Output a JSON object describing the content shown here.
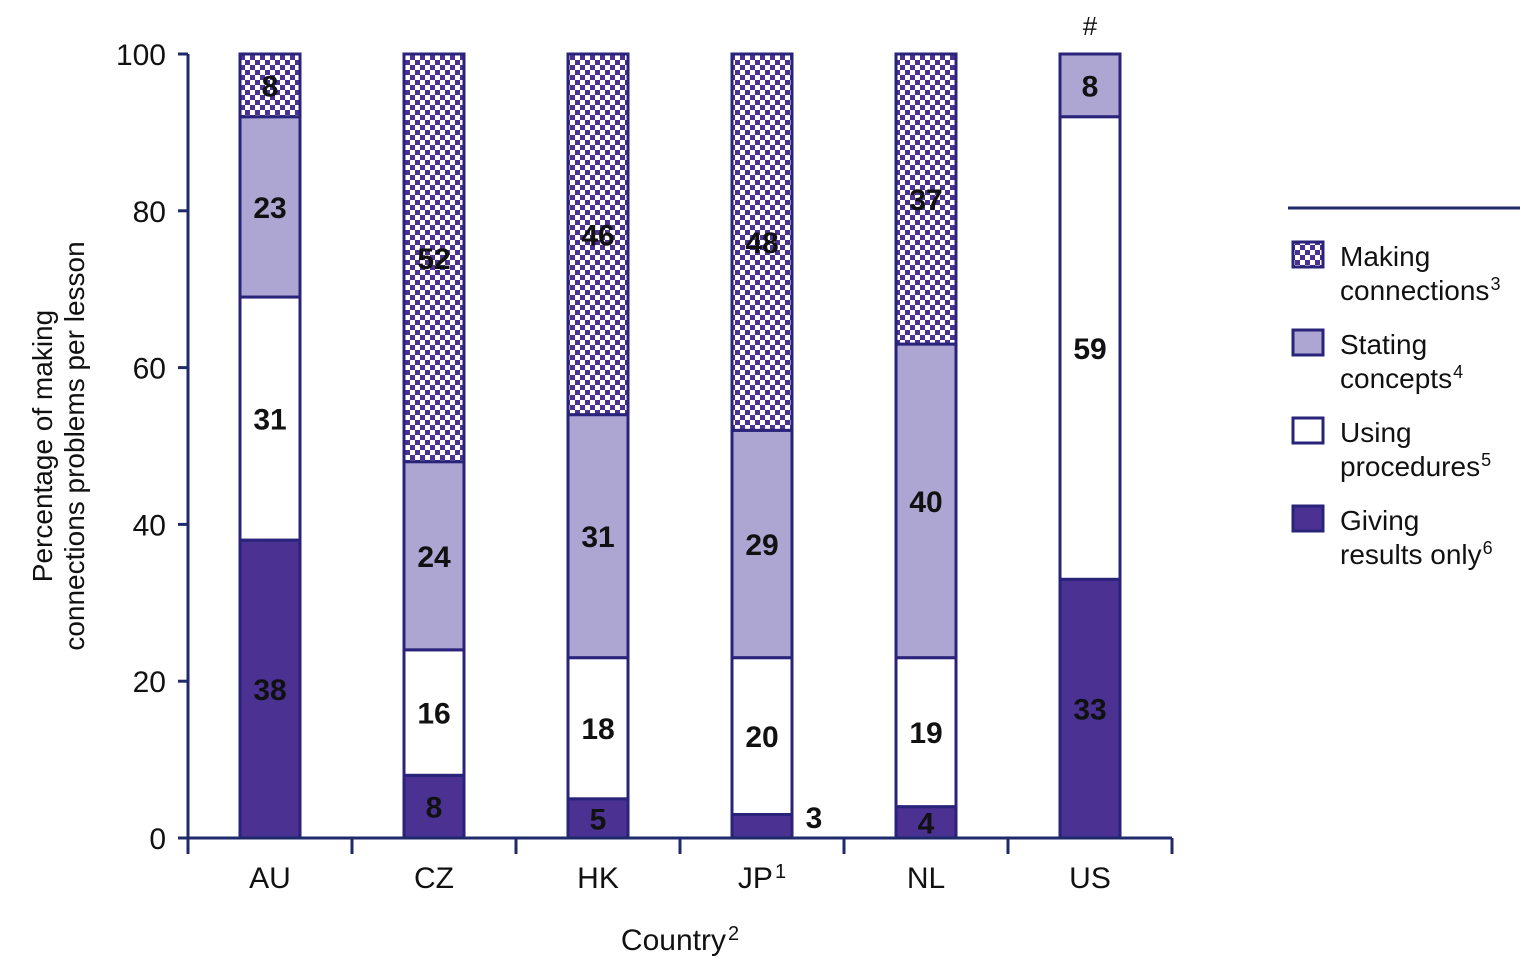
{
  "chart_data": {
    "type": "bar",
    "stacked": true,
    "percent_stacked": true,
    "xlabel": "Country",
    "xlabel_superscript": "2",
    "ylabel_lines": [
      "Percentage of making",
      "connections problems per lesson"
    ],
    "ylim": [
      0,
      100
    ],
    "yticks": [
      0,
      20,
      40,
      60,
      80,
      100
    ],
    "categories": [
      "AU",
      "CZ",
      "HK",
      "JP",
      "NL",
      "US"
    ],
    "category_superscripts": [
      "",
      "",
      "",
      "1",
      "",
      ""
    ],
    "top_notes": [
      "",
      "",
      "",
      "",
      "",
      "#"
    ],
    "series": [
      {
        "name": "Giving results only",
        "name_lines": [
          "Giving",
          "results only"
        ],
        "superscript": "6",
        "values": [
          38,
          8,
          5,
          3,
          4,
          33
        ],
        "labels": [
          "38",
          "8",
          "5",
          "3",
          "4",
          "33"
        ],
        "fill": "#4a3192",
        "pattern": "solid"
      },
      {
        "name": "Using procedures",
        "name_lines": [
          "Using",
          "procedures"
        ],
        "superscript": "5",
        "values": [
          31,
          16,
          18,
          20,
          19,
          59
        ],
        "labels": [
          "31",
          "16",
          "18",
          "20",
          "19",
          "59"
        ],
        "fill": "#ffffff",
        "pattern": "solid"
      },
      {
        "name": "Stating concepts",
        "name_lines": [
          "Stating",
          "concepts"
        ],
        "superscript": "4",
        "values": [
          23,
          24,
          31,
          29,
          40,
          8
        ],
        "labels": [
          "23",
          "24",
          "31",
          "29",
          "40",
          "8"
        ],
        "fill": "#ada6d3",
        "pattern": "solid"
      },
      {
        "name": "Making connections",
        "name_lines": [
          "Making",
          "connections"
        ],
        "superscript": "3",
        "values": [
          8,
          52,
          46,
          48,
          37,
          0
        ],
        "labels": [
          "8",
          "52",
          "46",
          "48",
          "37",
          ""
        ],
        "fill": "#4a3192",
        "pattern": "checker"
      }
    ],
    "legend_order": [
      3,
      2,
      1,
      0
    ],
    "legend_position": "right",
    "colors": {
      "axis": "#1f2a6b",
      "bar_outline": "#2a237a",
      "text": "#111111"
    }
  }
}
